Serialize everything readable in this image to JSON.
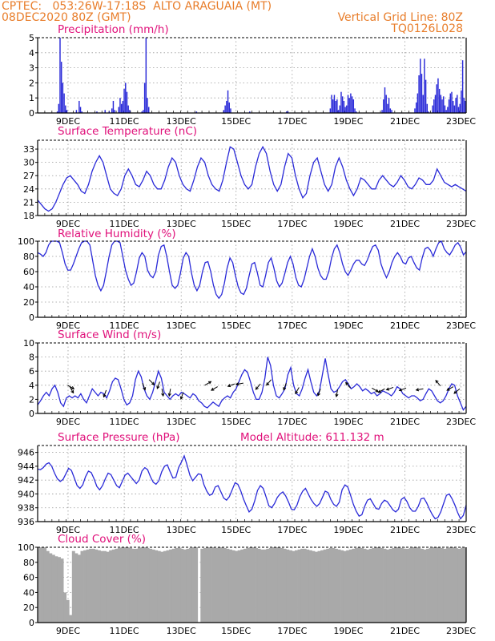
{
  "header": {
    "line1_left": "CPTEC:   053:26W-17:18S  ALTO ARAGUAIA (MT)",
    "line2_left": "08DEC2020 80Z (GMT)",
    "line2_right": "Vertical Grid Line: 80Z",
    "line3_right": "TQ0126L028"
  },
  "colors": {
    "header": "#e87d2a",
    "title": "#e0107a",
    "line": "#2a2ad8",
    "cloud": "#a9a9a9"
  },
  "chart_data": [
    {
      "type": "bar",
      "title": "Precipitation (mm/h)",
      "ylim": [
        0,
        5
      ],
      "yticks": [
        "0",
        "1",
        "2",
        "3",
        "4",
        "5"
      ],
      "xticks": [
        "9DEC",
        "11DEC",
        "13DEC",
        "15DEC",
        "17DEC",
        "19DEC",
        "21DEC",
        "23DEC"
      ],
      "values": [
        0,
        0,
        0,
        0,
        0,
        0,
        0,
        0,
        0,
        0,
        0,
        0,
        0,
        0,
        0.1,
        0.6,
        5.0,
        3.4,
        2.0,
        1.3,
        0.5,
        0.2,
        0,
        0,
        0,
        0,
        0,
        0,
        0.2,
        0,
        0.8,
        0.4,
        0.1,
        0,
        0,
        0,
        0,
        0,
        0,
        0,
        0,
        0,
        0,
        0.1,
        0,
        0,
        0,
        0,
        0,
        0.2,
        0,
        0,
        0.1,
        0,
        0.3,
        0.8,
        0.2,
        0,
        0,
        0.4,
        1.0,
        0.6,
        0.8,
        1.6,
        2.0,
        1.4,
        0.5,
        0.2,
        0,
        0,
        0,
        0,
        0,
        0,
        0,
        0,
        0.1,
        0.2,
        2.0,
        5.0,
        1.0,
        0.4,
        0,
        0,
        0,
        0,
        0,
        0,
        0,
        0,
        0,
        0,
        0,
        0,
        0,
        0,
        0,
        0,
        0,
        0,
        0,
        0,
        0,
        0,
        0,
        0,
        0,
        0,
        0,
        0,
        0,
        0,
        0,
        0,
        0,
        0,
        0.1,
        0,
        0,
        0,
        0,
        0,
        0,
        0,
        0,
        0,
        0,
        0,
        0,
        0,
        0,
        0,
        0,
        0,
        0,
        0,
        0.2,
        0.5,
        0.8,
        1.5,
        0.7,
        0.3,
        0,
        0,
        0,
        0,
        0,
        0,
        0,
        0,
        0,
        0,
        0,
        0,
        0,
        0.1,
        0,
        0,
        0,
        0,
        0,
        0,
        0,
        0,
        0,
        0,
        0,
        0,
        0,
        0,
        0,
        0,
        0,
        0,
        0,
        0,
        0,
        0,
        0,
        0,
        0,
        0,
        0.1,
        0.1,
        0,
        0,
        0,
        0,
        0,
        0,
        0,
        0,
        0,
        0,
        0,
        0,
        0,
        0,
        0,
        0,
        0,
        0,
        0,
        0,
        0,
        0,
        0,
        0,
        0,
        0,
        0,
        0,
        0,
        0,
        0.3,
        1.2,
        0.9,
        1.2,
        0.8,
        0.9,
        0.2,
        0.5,
        1.4,
        1.1,
        0.8,
        0.4,
        0.5,
        1.2,
        1.0,
        1.3,
        1.1,
        0.9,
        0.3,
        0.1,
        0,
        0,
        0,
        0,
        0,
        0,
        0,
        0,
        0,
        0,
        0,
        0,
        0,
        0,
        0,
        0,
        0,
        0,
        0.2,
        0.9,
        1.7,
        1.2,
        0.6,
        1.0,
        0.3,
        0.2,
        0,
        0,
        0,
        0,
        0,
        0,
        0,
        0,
        0,
        0,
        0,
        0,
        0,
        0,
        0,
        0,
        0.3,
        0.7,
        1.3,
        2.5,
        3.6,
        2.6,
        1.2,
        3.6,
        2.2,
        0.6,
        0.1,
        0,
        0,
        0.5,
        0.9,
        1.2,
        1.9,
        2.3,
        1.6,
        1.2,
        0.9,
        1.1,
        0.5,
        0.2,
        0.4,
        0.9,
        1.3,
        1.4,
        0.8,
        0.5,
        1.0,
        1.2,
        0.4,
        0.6,
        1.5,
        3.5,
        1.0,
        0.8
      ]
    },
    {
      "type": "line",
      "title": "Surface Temperature (nC)",
      "ylim": [
        18,
        35
      ],
      "yticks": [
        "18",
        "21",
        "24",
        "27",
        "30",
        "33"
      ],
      "xticks": [
        "9DEC",
        "11DEC",
        "13DEC",
        "15DEC",
        "17DEC",
        "19DEC",
        "21DEC",
        "23DEC"
      ],
      "values": [
        21.5,
        20.5,
        19.5,
        19,
        19.5,
        21,
        23,
        25,
        26.5,
        27,
        26,
        25,
        23.5,
        23,
        25,
        28,
        30,
        31.5,
        30,
        27,
        24,
        23,
        22.5,
        24,
        27,
        28.5,
        27,
        25,
        24.5,
        26,
        28,
        27,
        25,
        24,
        24,
        26,
        29,
        31,
        30,
        27,
        25,
        24,
        23.5,
        26,
        29,
        31,
        30,
        27,
        25,
        24,
        23.5,
        26,
        30,
        33.5,
        33,
        30,
        27,
        25,
        24,
        25,
        29,
        32,
        33.5,
        32,
        28,
        25,
        23.5,
        25,
        29,
        32,
        31,
        27,
        24,
        22,
        23,
        27,
        30,
        31,
        28,
        25,
        23.5,
        25,
        29,
        31,
        29,
        26,
        24,
        22.5,
        24,
        26.5,
        26,
        25,
        24,
        24,
        26,
        27,
        26,
        25,
        24.5,
        25.5,
        27,
        26,
        24.5,
        24,
        25,
        26.5,
        26,
        25,
        25,
        26,
        28.5,
        27,
        25.5,
        25,
        24.5,
        25,
        24.5,
        24,
        23.5
      ]
    },
    {
      "type": "line",
      "title": "Relative Humidity (%)",
      "ylim": [
        0,
        100
      ],
      "yticks": [
        "0",
        "20",
        "40",
        "60",
        "80",
        "100"
      ],
      "xticks": [
        "9DEC",
        "11DEC",
        "13DEC",
        "15DEC",
        "17DEC",
        "19DEC",
        "21DEC",
        "23DEC"
      ],
      "values": [
        85,
        83,
        80,
        85,
        95,
        100,
        100,
        100,
        98,
        85,
        70,
        62,
        62,
        70,
        80,
        90,
        98,
        100,
        100,
        95,
        75,
        55,
        42,
        35,
        42,
        60,
        80,
        95,
        100,
        100,
        98,
        80,
        62,
        50,
        42,
        45,
        60,
        78,
        85,
        80,
        62,
        55,
        52,
        60,
        82,
        93,
        95,
        80,
        60,
        42,
        38,
        42,
        58,
        78,
        85,
        80,
        58,
        42,
        35,
        42,
        60,
        72,
        73,
        60,
        42,
        30,
        25,
        30,
        45,
        65,
        78,
        72,
        55,
        40,
        32,
        30,
        38,
        55,
        70,
        72,
        58,
        42,
        40,
        55,
        72,
        78,
        65,
        48,
        40,
        45,
        58,
        72,
        80,
        70,
        52,
        42,
        40,
        50,
        65,
        80,
        90,
        80,
        65,
        55,
        50,
        50,
        60,
        78,
        90,
        95,
        85,
        70,
        60,
        55,
        62,
        70,
        75,
        75,
        70,
        68,
        75,
        85,
        93,
        95,
        88,
        70,
        60,
        52,
        60,
        72,
        80,
        85,
        80,
        72,
        70,
        78,
        80,
        72,
        65,
        62,
        78,
        90,
        92,
        88,
        80,
        90,
        98,
        100,
        90,
        85,
        82,
        88,
        95,
        98,
        92,
        82,
        86
      ]
    },
    {
      "type": "line",
      "title": "Surface Wind (m/s)",
      "ylim": [
        0,
        10
      ],
      "yticks": [
        "0",
        "2",
        "4",
        "6",
        "8",
        "10"
      ],
      "xticks": [
        "9DEC",
        "11DEC",
        "13DEC",
        "15DEC",
        "17DEC",
        "19DEC",
        "21DEC",
        "23DEC"
      ],
      "values": [
        1.2,
        1.8,
        2.5,
        3,
        2.5,
        3.5,
        4,
        3,
        1.5,
        1,
        2.2,
        2.5,
        2.2,
        2.5,
        2.2,
        2.8,
        2,
        1.5,
        2.5,
        3.5,
        3,
        2.5,
        3,
        2.8,
        2.2,
        3.2,
        4.5,
        5,
        4.8,
        3.5,
        2,
        1.2,
        1.5,
        2.5,
        4.8,
        6,
        5.2,
        3.5,
        2.5,
        2,
        3,
        4.5,
        6,
        5,
        3,
        2.5,
        2,
        2.5,
        2.8,
        2.5,
        3,
        2.8,
        2.5,
        2.2,
        2.8,
        2.5,
        1.8,
        1.5,
        1,
        0.8,
        1.2,
        1.6,
        1.3,
        1,
        1.8,
        2.2,
        2.5,
        2.2,
        3,
        3.5,
        4.5,
        5.5,
        6.2,
        5.8,
        4.5,
        3,
        2,
        2,
        3,
        5,
        8,
        6.8,
        4,
        2.5,
        2.2,
        2.8,
        3.5,
        5.5,
        6.5,
        4,
        2.8,
        2.5,
        3.5,
        5,
        6.2,
        4.5,
        3,
        2.5,
        3.2,
        5.5,
        7.8,
        5.5,
        3.5,
        3,
        3.2,
        3.8,
        4.5,
        4.8,
        4.2,
        3.5,
        3.8,
        4.2,
        3.8,
        3.2,
        3.5,
        3.2,
        2.8,
        3,
        2.5,
        2.8,
        3.2,
        3,
        2.8,
        2.5,
        3,
        3.8,
        3.5,
        2.8,
        2.5,
        2.2,
        2.5,
        2.5,
        2.2,
        1.8,
        2,
        2.8,
        3.5,
        3.2,
        2.5,
        1.8,
        1.5,
        1.8,
        2.5,
        3.5,
        4.2,
        4,
        2.5,
        1.5,
        0.5,
        1
      ],
      "arrows": [
        {
          "x": 0.07,
          "v": 4.0,
          "dir": 120
        },
        {
          "x": 0.075,
          "v": 3.8,
          "dir": 150
        },
        {
          "x": 0.16,
          "v": 3.3,
          "dir": 200
        },
        {
          "x": 0.245,
          "v": 4.3,
          "dir": 160
        },
        {
          "x": 0.26,
          "v": 4.8,
          "dir": 135
        },
        {
          "x": 0.285,
          "v": 4.5,
          "dir": 200
        },
        {
          "x": 0.29,
          "v": 3.5,
          "dir": 170
        },
        {
          "x": 0.31,
          "v": 3.5,
          "dir": 190
        },
        {
          "x": 0.34,
          "v": 3.0,
          "dir": 200
        },
        {
          "x": 0.39,
          "v": 4.0,
          "dir": 60
        },
        {
          "x": 0.42,
          "v": 3.8,
          "dir": 240
        },
        {
          "x": 0.46,
          "v": 4.2,
          "dir": 250
        },
        {
          "x": 0.48,
          "v": 4.3,
          "dir": 260
        },
        {
          "x": 0.52,
          "v": 4.2,
          "dir": 220
        },
        {
          "x": 0.545,
          "v": 4.8,
          "dir": 220
        },
        {
          "x": 0.58,
          "v": 4.3,
          "dir": 200
        },
        {
          "x": 0.61,
          "v": 3.7,
          "dir": 210
        },
        {
          "x": 0.66,
          "v": 3.5,
          "dir": 200
        },
        {
          "x": 0.7,
          "v": 3.4,
          "dir": 190
        },
        {
          "x": 0.73,
          "v": 3.6,
          "dir": 320
        },
        {
          "x": 0.78,
          "v": 3.6,
          "dir": 120
        },
        {
          "x": 0.81,
          "v": 3.5,
          "dir": 240
        },
        {
          "x": 0.83,
          "v": 3.7,
          "dir": 250
        },
        {
          "x": 0.86,
          "v": 3.6,
          "dir": 250
        },
        {
          "x": 0.9,
          "v": 3.5,
          "dir": 260
        },
        {
          "x": 0.94,
          "v": 3.9,
          "dir": 320
        },
        {
          "x": 0.97,
          "v": 3.8,
          "dir": 240
        },
        {
          "x": 0.985,
          "v": 3.5,
          "dir": 230
        }
      ]
    },
    {
      "type": "line",
      "title": "Surface Pressure (hPa)",
      "subtitle": "Model Altitude: 611.132 m",
      "ylim": [
        936,
        947
      ],
      "yticks": [
        "936",
        "938",
        "940",
        "942",
        "944",
        "946"
      ],
      "xticks": [
        "9DEC",
        "11DEC",
        "13DEC",
        "15DEC",
        "17DEC",
        "19DEC",
        "21DEC",
        "23DEC"
      ],
      "values": [
        943.6,
        943.5,
        943.8,
        944.3,
        944.5,
        944,
        943,
        942.2,
        941.8,
        942.1,
        942.9,
        943.7,
        943.4,
        942.3,
        941.2,
        940.8,
        941.3,
        942.5,
        943.3,
        943.1,
        942.2,
        941.1,
        940.6,
        941.2,
        942.2,
        943,
        942.8,
        942,
        941.2,
        940.9,
        941.8,
        942.7,
        943,
        942.5,
        942,
        941.5,
        942,
        943.3,
        943.8,
        943.5,
        942.5,
        941.7,
        941.4,
        941.9,
        943.2,
        944,
        944.2,
        943.2,
        942.3,
        942.4,
        943.8,
        944.6,
        945.5,
        944.2,
        942.7,
        941.9,
        942.4,
        942.9,
        942.8,
        941.3,
        940.4,
        939.8,
        940,
        941,
        941.2,
        940.3,
        939.4,
        939.1,
        939.6,
        940.6,
        941.6,
        941.4,
        940.5,
        939.3,
        938.3,
        937.4,
        937.8,
        939,
        940.5,
        941.2,
        940.8,
        939.6,
        938.3,
        938,
        938.6,
        939.5,
        940,
        940.3,
        939.7,
        938.8,
        937.8,
        937.7,
        938.4,
        939.6,
        940.4,
        940.8,
        940,
        939.2,
        938.6,
        938.2,
        938.6,
        939.5,
        940.4,
        940.2,
        939.2,
        938.5,
        938.2,
        938.8,
        940.6,
        941.3,
        941,
        939.8,
        938.5,
        937.5,
        936.8,
        937,
        938.2,
        939.1,
        939.3,
        938.6,
        937.9,
        937.8,
        938.6,
        939.1,
        938.9,
        938.3,
        937.7,
        937.4,
        937.8,
        939.2,
        939.5,
        938.9,
        938,
        937.5,
        937.5,
        938.2,
        939.3,
        939.4,
        938.7,
        937.8,
        937,
        936.4,
        936.6,
        937.4,
        938.6,
        939.8,
        940,
        939.3,
        938.4,
        937.3,
        936.4,
        936.9,
        938.4
      ]
    },
    {
      "type": "area",
      "title": "Cloud Cover (%)",
      "ylim": [
        0,
        100
      ],
      "yticks": [
        "0",
        "20",
        "40",
        "60",
        "80",
        "100"
      ],
      "xticks": [
        "9DEC",
        "11DEC",
        "13DEC",
        "15DEC",
        "17DEC",
        "19DEC",
        "21DEC",
        "23DEC"
      ],
      "values": [
        100,
        100,
        100,
        95,
        92,
        90,
        88,
        87,
        85,
        40,
        30,
        10,
        95,
        92,
        90,
        95,
        96,
        97,
        98,
        98,
        97,
        96,
        95,
        95,
        94,
        96,
        97,
        98,
        99,
        100,
        100,
        100,
        99,
        98,
        98,
        99,
        100,
        100,
        99,
        98,
        97,
        96,
        95,
        94,
        95,
        96,
        97,
        98,
        99,
        99,
        98,
        97,
        98,
        99,
        100,
        100,
        0,
        98,
        99,
        100,
        100,
        100,
        99,
        100,
        100,
        99,
        98,
        97,
        96,
        95,
        96,
        97,
        98,
        99,
        100,
        100,
        99,
        98,
        97,
        97,
        98,
        99,
        100,
        100,
        100,
        99,
        98,
        97,
        96,
        95,
        96,
        97,
        98,
        98,
        97,
        96,
        95,
        94,
        95,
        96,
        97,
        98,
        99,
        99,
        98,
        97,
        96,
        95,
        96,
        97,
        98,
        99,
        100,
        99,
        98,
        97,
        98,
        99,
        100,
        100,
        99,
        98,
        97,
        98,
        99,
        100,
        100,
        99,
        98,
        98,
        99,
        100,
        100,
        99,
        98,
        97,
        98,
        99,
        100,
        100,
        100,
        99,
        98,
        99,
        100,
        100,
        99,
        98,
        99,
        100
      ]
    }
  ]
}
